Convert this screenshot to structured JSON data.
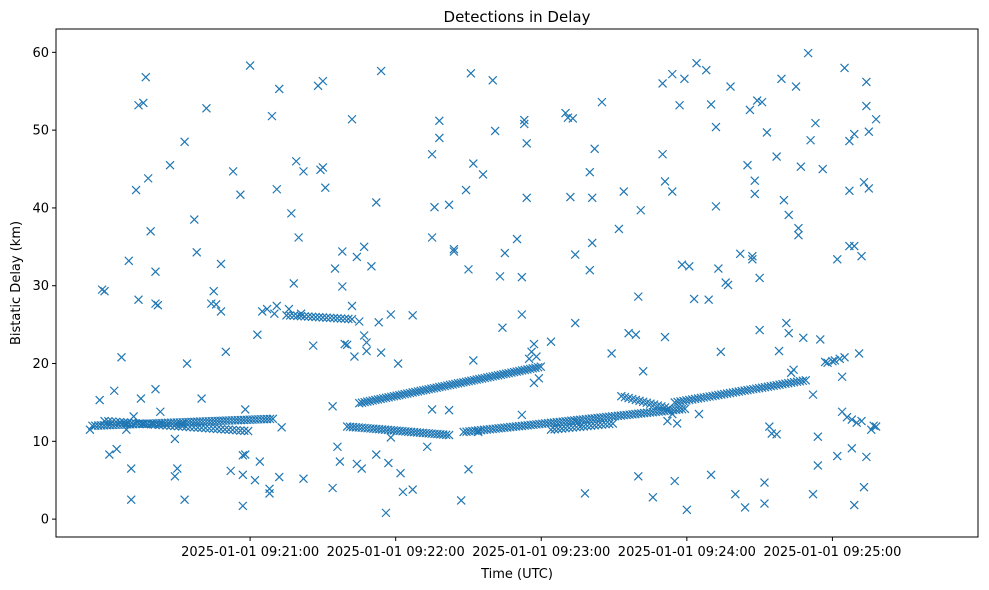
{
  "chart_data": {
    "type": "scatter",
    "title": "Detections in Delay",
    "xlabel": "Time (UTC)",
    "ylabel": "Bistatic Delay (km)",
    "marker": "x",
    "color": "#1f77b4",
    "xlim_seconds_from_09_20_00": [
      -20,
      360
    ],
    "ylim": [
      -2.3,
      63.0
    ],
    "x_ticks": [
      {
        "t": 60,
        "label": "2025-01-01 09:21:00"
      },
      {
        "t": 120,
        "label": "2025-01-01 09:22:00"
      },
      {
        "t": 180,
        "label": "2025-01-01 09:23:00"
      },
      {
        "t": 240,
        "label": "2025-01-01 09:24:00"
      },
      {
        "t": 300,
        "label": "2025-01-01 09:25:00"
      }
    ],
    "y_ticks": [
      0,
      10,
      20,
      30,
      40,
      50,
      60
    ],
    "tracks": [
      {
        "name": "track-1",
        "t_start": -5,
        "t_end": 70,
        "y_start": 12.0,
        "y_end": 12.9,
        "step": 1.2
      },
      {
        "name": "track-2",
        "t_start": 75,
        "t_end": 102,
        "y_start": 26.2,
        "y_end": 25.7,
        "step": 1.5
      },
      {
        "name": "track-3",
        "t_start": 100,
        "t_end": 142,
        "y_start": 11.9,
        "y_end": 10.8,
        "step": 1.2
      },
      {
        "name": "track-4",
        "t_start": 105,
        "t_end": 180,
        "y_start": 14.9,
        "y_end": 19.6,
        "step": 1.1
      },
      {
        "name": "track-5",
        "t_start": 148,
        "t_end": 240,
        "y_start": 11.2,
        "y_end": 14.2,
        "step": 1.2
      },
      {
        "name": "track-6",
        "t_start": 235,
        "t_end": 290,
        "y_start": 15.0,
        "y_end": 17.9,
        "step": 1.2
      },
      {
        "name": "track-7",
        "t_start": 0,
        "t_end": 60,
        "y_start": 12.6,
        "y_end": 11.3,
        "step": 1.6
      },
      {
        "name": "track-8",
        "t_start": 184,
        "t_end": 210,
        "y_start": 11.5,
        "y_end": 12.3,
        "step": 1.5
      },
      {
        "name": "track-9",
        "t_start": 213,
        "t_end": 233,
        "y_start": 15.8,
        "y_end": 14.2,
        "step": 1.5
      }
    ],
    "noise_points": [
      [
        -6,
        11.5
      ],
      [
        -2,
        15.3
      ],
      [
        -1,
        29.5
      ],
      [
        0,
        29.3
      ],
      [
        2,
        8.3
      ],
      [
        4,
        16.5
      ],
      [
        5,
        9.0
      ],
      [
        7,
        20.8
      ],
      [
        9,
        11.5
      ],
      [
        10,
        33.2
      ],
      [
        11,
        2.5
      ],
      [
        11,
        6.5
      ],
      [
        12,
        13.2
      ],
      [
        13,
        42.3
      ],
      [
        14,
        53.2
      ],
      [
        14,
        28.2
      ],
      [
        15,
        15.5
      ],
      [
        16,
        53.5
      ],
      [
        17,
        56.8
      ],
      [
        18,
        43.8
      ],
      [
        19,
        37.0
      ],
      [
        20,
        12.2
      ],
      [
        21,
        27.7
      ],
      [
        21,
        31.8
      ],
      [
        21,
        16.7
      ],
      [
        22,
        27.5
      ],
      [
        23,
        13.8
      ],
      [
        27,
        45.5
      ],
      [
        29,
        10.3
      ],
      [
        29,
        5.5
      ],
      [
        30,
        6.5
      ],
      [
        32,
        12.2
      ],
      [
        33,
        48.5
      ],
      [
        33,
        2.5
      ],
      [
        34,
        20.0
      ],
      [
        37,
        38.5
      ],
      [
        38,
        34.3
      ],
      [
        40,
        15.5
      ],
      [
        42,
        52.8
      ],
      [
        44,
        27.7
      ],
      [
        45,
        29.3
      ],
      [
        46,
        27.6
      ],
      [
        48,
        26.7
      ],
      [
        48,
        32.8
      ],
      [
        50,
        21.5
      ],
      [
        52,
        6.2
      ],
      [
        53,
        44.7
      ],
      [
        56,
        41.7
      ],
      [
        57,
        8.2
      ],
      [
        57,
        5.7
      ],
      [
        57,
        1.7
      ],
      [
        58,
        8.3
      ],
      [
        58,
        14.1
      ],
      [
        60,
        58.3
      ],
      [
        62,
        5.0
      ],
      [
        63,
        23.7
      ],
      [
        64,
        7.4
      ],
      [
        65,
        26.7
      ],
      [
        67,
        27.0
      ],
      [
        68,
        3.3
      ],
      [
        68,
        3.9
      ],
      [
        69,
        51.8
      ],
      [
        70,
        26.4
      ],
      [
        71,
        27.4
      ],
      [
        72,
        55.3
      ],
      [
        71,
        42.4
      ],
      [
        72,
        5.4
      ],
      [
        73,
        11.8
      ],
      [
        76,
        27.0
      ],
      [
        77,
        39.3
      ],
      [
        78,
        30.3
      ],
      [
        79,
        46.0
      ],
      [
        80,
        36.2
      ],
      [
        81,
        26.4
      ],
      [
        82,
        44.7
      ],
      [
        82,
        5.2
      ],
      [
        86,
        22.3
      ],
      [
        88,
        55.7
      ],
      [
        89,
        44.9
      ],
      [
        90,
        56.3
      ],
      [
        90,
        45.2
      ],
      [
        91,
        42.6
      ],
      [
        94,
        14.5
      ],
      [
        94,
        4.0
      ],
      [
        95,
        32.2
      ],
      [
        96,
        9.3
      ],
      [
        97,
        7.4
      ],
      [
        98,
        34.4
      ],
      [
        98,
        29.9
      ],
      [
        99,
        22.5
      ],
      [
        100,
        22.4
      ],
      [
        102,
        51.4
      ],
      [
        102,
        27.4
      ],
      [
        103,
        20.9
      ],
      [
        104,
        33.7
      ],
      [
        104,
        7.1
      ],
      [
        105,
        25.4
      ],
      [
        106,
        6.5
      ],
      [
        107,
        35.0
      ],
      [
        107,
        23.6
      ],
      [
        108,
        21.6
      ],
      [
        108,
        22.7
      ],
      [
        110,
        32.5
      ],
      [
        112,
        40.7
      ],
      [
        112,
        8.3
      ],
      [
        113,
        25.3
      ],
      [
        114,
        57.6
      ],
      [
        114,
        21.4
      ],
      [
        116,
        0.8
      ],
      [
        117,
        7.2
      ],
      [
        118,
        26.3
      ],
      [
        118,
        10.5
      ],
      [
        121,
        20.0
      ],
      [
        122,
        5.9
      ],
      [
        123,
        3.5
      ],
      [
        127,
        3.8
      ],
      [
        127,
        26.2
      ],
      [
        133,
        9.3
      ],
      [
        135,
        36.2
      ],
      [
        135,
        46.9
      ],
      [
        135,
        14.1
      ],
      [
        136,
        40.1
      ],
      [
        138,
        51.2
      ],
      [
        138,
        49.0
      ],
      [
        142,
        40.4
      ],
      [
        142,
        14.0
      ],
      [
        144,
        34.7
      ],
      [
        144,
        34.4
      ],
      [
        147,
        2.4
      ],
      [
        149,
        42.3
      ],
      [
        150,
        32.1
      ],
      [
        150,
        6.4
      ],
      [
        151,
        57.3
      ],
      [
        152,
        45.7
      ],
      [
        152,
        20.4
      ],
      [
        154,
        11.2
      ],
      [
        156,
        44.3
      ],
      [
        160,
        56.4
      ],
      [
        161,
        49.9
      ],
      [
        163,
        31.2
      ],
      [
        164,
        24.6
      ],
      [
        165,
        34.2
      ],
      [
        170,
        36.0
      ],
      [
        172,
        31.1
      ],
      [
        172,
        26.3
      ],
      [
        172,
        13.4
      ],
      [
        173,
        50.8
      ],
      [
        173,
        51.3
      ],
      [
        174,
        48.3
      ],
      [
        174,
        41.3
      ],
      [
        175,
        20.6
      ],
      [
        176,
        21.5
      ],
      [
        177,
        17.5
      ],
      [
        177,
        22.5
      ],
      [
        178,
        20.9
      ],
      [
        179,
        18.1
      ],
      [
        184,
        22.8
      ],
      [
        190,
        52.2
      ],
      [
        191,
        51.6
      ],
      [
        192,
        41.4
      ],
      [
        193,
        51.5
      ],
      [
        194,
        34.0
      ],
      [
        194,
        25.2
      ],
      [
        195,
        12.4
      ],
      [
        198,
        3.3
      ],
      [
        200,
        44.6
      ],
      [
        200,
        32.0
      ],
      [
        201,
        35.5
      ],
      [
        201,
        41.3
      ],
      [
        202,
        47.6
      ],
      [
        205,
        53.6
      ],
      [
        209,
        21.3
      ],
      [
        212,
        37.3
      ],
      [
        214,
        42.1
      ],
      [
        216,
        23.9
      ],
      [
        219,
        23.7
      ],
      [
        220,
        5.5
      ],
      [
        220,
        28.6
      ],
      [
        221,
        39.7
      ],
      [
        222,
        19.0
      ],
      [
        226,
        2.8
      ],
      [
        230,
        56.0
      ],
      [
        230,
        46.9
      ],
      [
        231,
        43.4
      ],
      [
        231,
        23.4
      ],
      [
        232,
        12.6
      ],
      [
        234,
        42.1
      ],
      [
        234,
        57.2
      ],
      [
        234,
        13.5
      ],
      [
        235,
        4.9
      ],
      [
        236,
        12.3
      ],
      [
        237,
        53.2
      ],
      [
        238,
        32.7
      ],
      [
        239,
        56.6
      ],
      [
        240,
        1.2
      ],
      [
        241,
        32.5
      ],
      [
        243,
        28.3
      ],
      [
        244,
        58.6
      ],
      [
        245,
        13.5
      ],
      [
        248,
        57.7
      ],
      [
        249,
        28.2
      ],
      [
        250,
        53.3
      ],
      [
        250,
        5.7
      ],
      [
        252,
        50.4
      ],
      [
        252,
        40.2
      ],
      [
        253,
        32.2
      ],
      [
        254,
        21.5
      ],
      [
        256,
        30.4
      ],
      [
        257,
        30.1
      ],
      [
        258,
        55.6
      ],
      [
        260,
        3.2
      ],
      [
        262,
        34.1
      ],
      [
        264,
        1.5
      ],
      [
        265,
        45.5
      ],
      [
        266,
        52.6
      ],
      [
        267,
        33.8
      ],
      [
        267,
        33.4
      ],
      [
        268,
        43.5
      ],
      [
        268,
        41.8
      ],
      [
        269,
        53.8
      ],
      [
        270,
        24.3
      ],
      [
        270,
        31.0
      ],
      [
        271,
        53.6
      ],
      [
        272,
        2.0
      ],
      [
        272,
        4.7
      ],
      [
        273,
        49.7
      ],
      [
        274,
        11.9
      ],
      [
        275,
        11.0
      ],
      [
        277,
        10.9
      ],
      [
        277,
        46.6
      ],
      [
        278,
        21.6
      ],
      [
        279,
        56.6
      ],
      [
        280,
        41.0
      ],
      [
        281,
        25.2
      ],
      [
        282,
        23.9
      ],
      [
        282,
        39.1
      ],
      [
        283,
        18.8
      ],
      [
        284,
        19.2
      ],
      [
        285,
        55.6
      ],
      [
        286,
        37.4
      ],
      [
        286,
        36.5
      ],
      [
        287,
        45.3
      ],
      [
        288,
        23.3
      ],
      [
        290,
        59.9
      ],
      [
        291,
        48.7
      ],
      [
        292,
        16.0
      ],
      [
        292,
        3.2
      ],
      [
        293,
        50.9
      ],
      [
        294,
        10.6
      ],
      [
        294,
        6.9
      ],
      [
        295,
        23.1
      ],
      [
        296,
        45.0
      ],
      [
        297,
        20.2
      ],
      [
        298,
        20.1
      ],
      [
        300,
        20.3
      ],
      [
        301,
        20.4
      ],
      [
        302,
        33.4
      ],
      [
        302,
        8.1
      ],
      [
        303,
        20.6
      ],
      [
        304,
        18.3
      ],
      [
        304,
        13.8
      ],
      [
        305,
        58.0
      ],
      [
        305,
        20.8
      ],
      [
        306,
        13.1
      ],
      [
        307,
        48.6
      ],
      [
        307,
        42.2
      ],
      [
        307,
        35.1
      ],
      [
        308,
        9.1
      ],
      [
        308,
        12.8
      ],
      [
        309,
        49.5
      ],
      [
        309,
        35.1
      ],
      [
        309,
        1.8
      ],
      [
        310,
        12.4
      ],
      [
        311,
        21.3
      ],
      [
        312,
        12.6
      ],
      [
        312,
        33.8
      ],
      [
        313,
        43.3
      ],
      [
        313,
        4.1
      ],
      [
        314,
        56.2
      ],
      [
        314,
        53.1
      ],
      [
        314,
        8.0
      ],
      [
        315,
        49.8
      ],
      [
        315,
        42.5
      ],
      [
        316,
        11.5
      ],
      [
        317,
        12.0
      ],
      [
        318,
        11.9
      ],
      [
        318,
        51.4
      ]
    ]
  }
}
